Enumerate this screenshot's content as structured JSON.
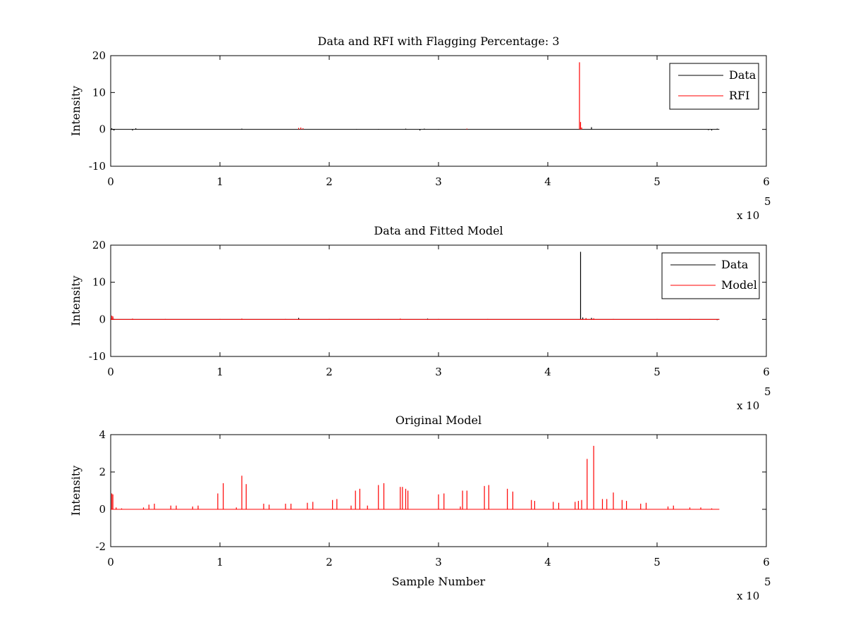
{
  "chart_data": [
    {
      "type": "line",
      "title": "Data and RFI with Flagging Percentage: 3",
      "xlabel": "",
      "ylabel": "Intensity",
      "xlim": [
        0,
        6
      ],
      "ylim": [
        -10,
        20
      ],
      "xticks": [
        0,
        1,
        2,
        3,
        4,
        5,
        6
      ],
      "yticks": [
        -10,
        0,
        10,
        20
      ],
      "x_multiplier_base": "x 10",
      "x_multiplier_exp": "5",
      "legend_position": "top-right",
      "series": [
        {
          "name": "Data",
          "color": "#000000",
          "x_end": 5.57,
          "baseline": 0,
          "spikes": [
            [
              0.01,
              0.3
            ],
            [
              0.03,
              -0.3
            ],
            [
              0.2,
              -0.3
            ],
            [
              0.23,
              0.3
            ],
            [
              1.2,
              0.2
            ],
            [
              2.25,
              0.1
            ],
            [
              2.45,
              0.1
            ],
            [
              2.7,
              0.2
            ],
            [
              2.83,
              -0.3
            ],
            [
              2.87,
              0.2
            ],
            [
              3.0,
              0.1
            ],
            [
              4.4,
              0.6
            ],
            [
              5.47,
              -0.2
            ],
            [
              5.5,
              -0.3
            ],
            [
              5.55,
              0.2
            ]
          ]
        },
        {
          "name": "RFI",
          "color": "#ff0000",
          "x_end": 5.57,
          "baseline": null,
          "spikes": [
            [
              1.72,
              0.4
            ],
            [
              1.74,
              0.5
            ],
            [
              1.76,
              0.3
            ],
            [
              3.26,
              0.2
            ],
            [
              4.29,
              18.2
            ],
            [
              4.3,
              2.0
            ],
            [
              4.31,
              0.5
            ]
          ]
        }
      ]
    },
    {
      "type": "line",
      "title": "Data and Fitted Model",
      "xlabel": "",
      "ylabel": "Intensity",
      "xlim": [
        0,
        6
      ],
      "ylim": [
        -10,
        20
      ],
      "xticks": [
        0,
        1,
        2,
        3,
        4,
        5,
        6
      ],
      "yticks": [
        -10,
        0,
        10,
        20
      ],
      "x_multiplier_base": "x 10",
      "x_multiplier_exp": "5",
      "legend_position": "top-right",
      "series": [
        {
          "name": "Data",
          "color": "#000000",
          "x_end": 5.57,
          "baseline": 0,
          "spikes": [
            [
              0.02,
              0.5
            ],
            [
              1.72,
              0.4
            ],
            [
              2.9,
              0.2
            ],
            [
              4.3,
              18.2
            ],
            [
              4.32,
              0.5
            ],
            [
              4.35,
              0.3
            ],
            [
              4.4,
              0.4
            ],
            [
              5.55,
              -0.2
            ]
          ]
        },
        {
          "name": "Model",
          "color": "#ff0000",
          "x_end": 5.57,
          "baseline": 0,
          "spikes": [
            [
              0.01,
              1.0
            ],
            [
              0.02,
              0.8
            ],
            [
              0.2,
              0.2
            ],
            [
              0.5,
              0.1
            ],
            [
              1.0,
              0.1
            ],
            [
              1.2,
              0.2
            ],
            [
              1.6,
              0.1
            ],
            [
              2.0,
              0.1
            ],
            [
              2.45,
              0.1
            ],
            [
              2.65,
              0.2
            ],
            [
              3.0,
              0.1
            ],
            [
              3.45,
              0.1
            ],
            [
              4.35,
              0.3
            ],
            [
              4.42,
              0.3
            ],
            [
              4.6,
              0.1
            ],
            [
              5.0,
              0.1
            ],
            [
              5.3,
              0.1
            ]
          ]
        }
      ]
    },
    {
      "type": "line",
      "title": "Original Model",
      "xlabel": "Sample Number",
      "ylabel": "Intensity",
      "xlim": [
        0,
        6
      ],
      "ylim": [
        -2,
        4
      ],
      "xticks": [
        0,
        1,
        2,
        3,
        4,
        5,
        6
      ],
      "yticks": [
        -2,
        0,
        2,
        4
      ],
      "x_multiplier_base": "x 10",
      "x_multiplier_exp": "5",
      "legend_position": "",
      "series": [
        {
          "name": "",
          "color": "#ff0000",
          "x_end": 5.57,
          "baseline": 0,
          "spikes": [
            [
              0.01,
              0.85
            ],
            [
              0.02,
              0.8
            ],
            [
              0.05,
              0.1
            ],
            [
              0.1,
              0.05
            ],
            [
              0.3,
              0.1
            ],
            [
              0.35,
              0.25
            ],
            [
              0.4,
              0.3
            ],
            [
              0.55,
              0.2
            ],
            [
              0.6,
              0.2
            ],
            [
              0.75,
              0.15
            ],
            [
              0.8,
              0.2
            ],
            [
              0.98,
              0.85
            ],
            [
              1.03,
              1.4
            ],
            [
              1.15,
              0.1
            ],
            [
              1.2,
              1.8
            ],
            [
              1.24,
              1.35
            ],
            [
              1.4,
              0.3
            ],
            [
              1.45,
              0.25
            ],
            [
              1.6,
              0.3
            ],
            [
              1.65,
              0.3
            ],
            [
              1.8,
              0.35
            ],
            [
              1.85,
              0.4
            ],
            [
              2.03,
              0.5
            ],
            [
              2.07,
              0.55
            ],
            [
              2.2,
              0.2
            ],
            [
              2.24,
              1.0
            ],
            [
              2.28,
              1.1
            ],
            [
              2.35,
              0.2
            ],
            [
              2.45,
              1.3
            ],
            [
              2.5,
              1.4
            ],
            [
              2.65,
              1.2
            ],
            [
              2.67,
              1.2
            ],
            [
              2.7,
              1.1
            ],
            [
              2.72,
              1.0
            ],
            [
              3.0,
              0.8
            ],
            [
              3.05,
              0.85
            ],
            [
              3.2,
              0.15
            ],
            [
              3.22,
              1.0
            ],
            [
              3.26,
              1.0
            ],
            [
              3.42,
              1.25
            ],
            [
              3.46,
              1.3
            ],
            [
              3.63,
              1.1
            ],
            [
              3.68,
              0.95
            ],
            [
              3.85,
              0.5
            ],
            [
              3.88,
              0.45
            ],
            [
              4.05,
              0.4
            ],
            [
              4.1,
              0.35
            ],
            [
              4.25,
              0.4
            ],
            [
              4.28,
              0.45
            ],
            [
              4.31,
              0.5
            ],
            [
              4.36,
              2.7
            ],
            [
              4.42,
              3.4
            ],
            [
              4.5,
              0.55
            ],
            [
              4.54,
              0.55
            ],
            [
              4.6,
              0.9
            ],
            [
              4.68,
              0.5
            ],
            [
              4.72,
              0.45
            ],
            [
              4.85,
              0.3
            ],
            [
              4.9,
              0.35
            ],
            [
              5.1,
              0.15
            ],
            [
              5.15,
              0.2
            ],
            [
              5.3,
              0.1
            ],
            [
              5.4,
              0.1
            ],
            [
              5.5,
              0.05
            ]
          ]
        }
      ]
    }
  ]
}
